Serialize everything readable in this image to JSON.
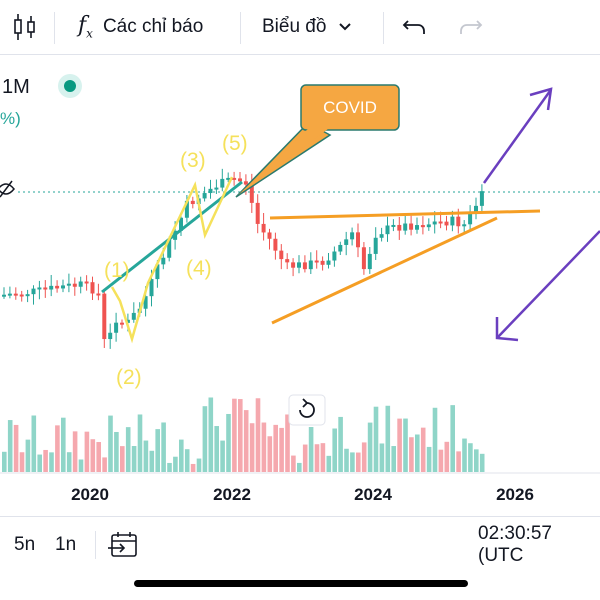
{
  "toolbar": {
    "indicators_label": "Các chỉ báo",
    "chart_type_label": "Biểu đồ"
  },
  "legend": {
    "interval": "1M",
    "change": "%)"
  },
  "annotations": {
    "covid_label": "COVID",
    "wave_labels": [
      "(1)",
      "(2)",
      "(3)",
      "(4)",
      "(5)"
    ]
  },
  "x_axis": {
    "years": [
      "2020",
      "2022",
      "2024",
      "2026"
    ]
  },
  "bottom": {
    "range_5y": "5n",
    "range_1y": "1n",
    "clock": "02:30:57 (UTC"
  },
  "colors": {
    "up": "#26a69a",
    "down": "#ef5350",
    "up_volume": "#8fd5c8",
    "down_volume": "#f5a8ae",
    "annotation_yellow": "#f5e15b",
    "covid_box": "#f5a742",
    "trendline_orange": "#f59e24",
    "arrow_purple": "#6a3fbf",
    "dotted_price_line": "#26a69a"
  },
  "chart_data": {
    "type": "candlestick",
    "interval": "monthly",
    "x_ticks": [
      "2020",
      "2022",
      "2024",
      "2026"
    ],
    "volume_histogram": true,
    "grid": false
  }
}
